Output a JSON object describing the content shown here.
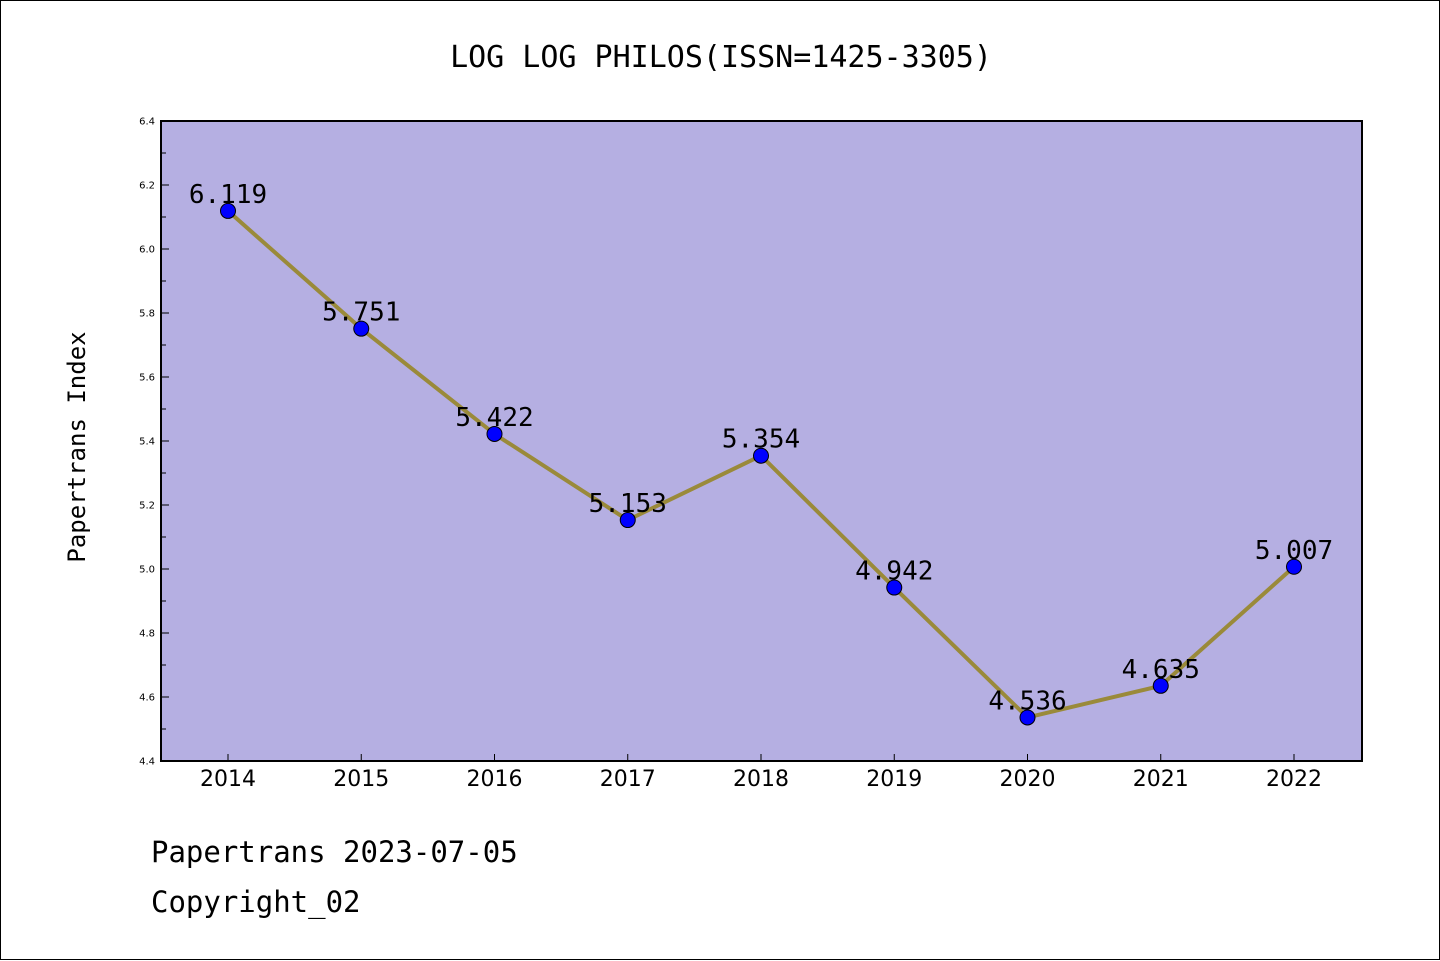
{
  "chart_data": {
    "type": "line",
    "title": "LOG LOG PHILOS(ISSN=1425-3305)",
    "xlabel": "",
    "ylabel": "Papertrans Index",
    "categories": [
      "2014",
      "2015",
      "2016",
      "2017",
      "2018",
      "2019",
      "2020",
      "2021",
      "2022"
    ],
    "series": [
      {
        "values": [
          6.119,
          5.751,
          5.422,
          5.153,
          5.354,
          4.942,
          4.536,
          4.635,
          5.007
        ],
        "labels": [
          "6.119",
          "5.751",
          "5.422",
          "5.153",
          "5.354",
          "4.942",
          "4.536",
          "4.635",
          "5.007"
        ]
      }
    ],
    "ylim": [
      4.4,
      6.4
    ],
    "yticks": [
      "4.4",
      "4.6",
      "4.8",
      "5.0",
      "5.2",
      "5.4",
      "5.6",
      "5.8",
      "6.0",
      "6.2",
      "6.4"
    ],
    "grid": false,
    "colors": {
      "plot_background": "#b5afe2",
      "line": "#9a8a3a",
      "marker": "#0000ff"
    }
  },
  "footer": {
    "line1": "Papertrans 2023-07-05",
    "line2": "Copyright_02"
  }
}
